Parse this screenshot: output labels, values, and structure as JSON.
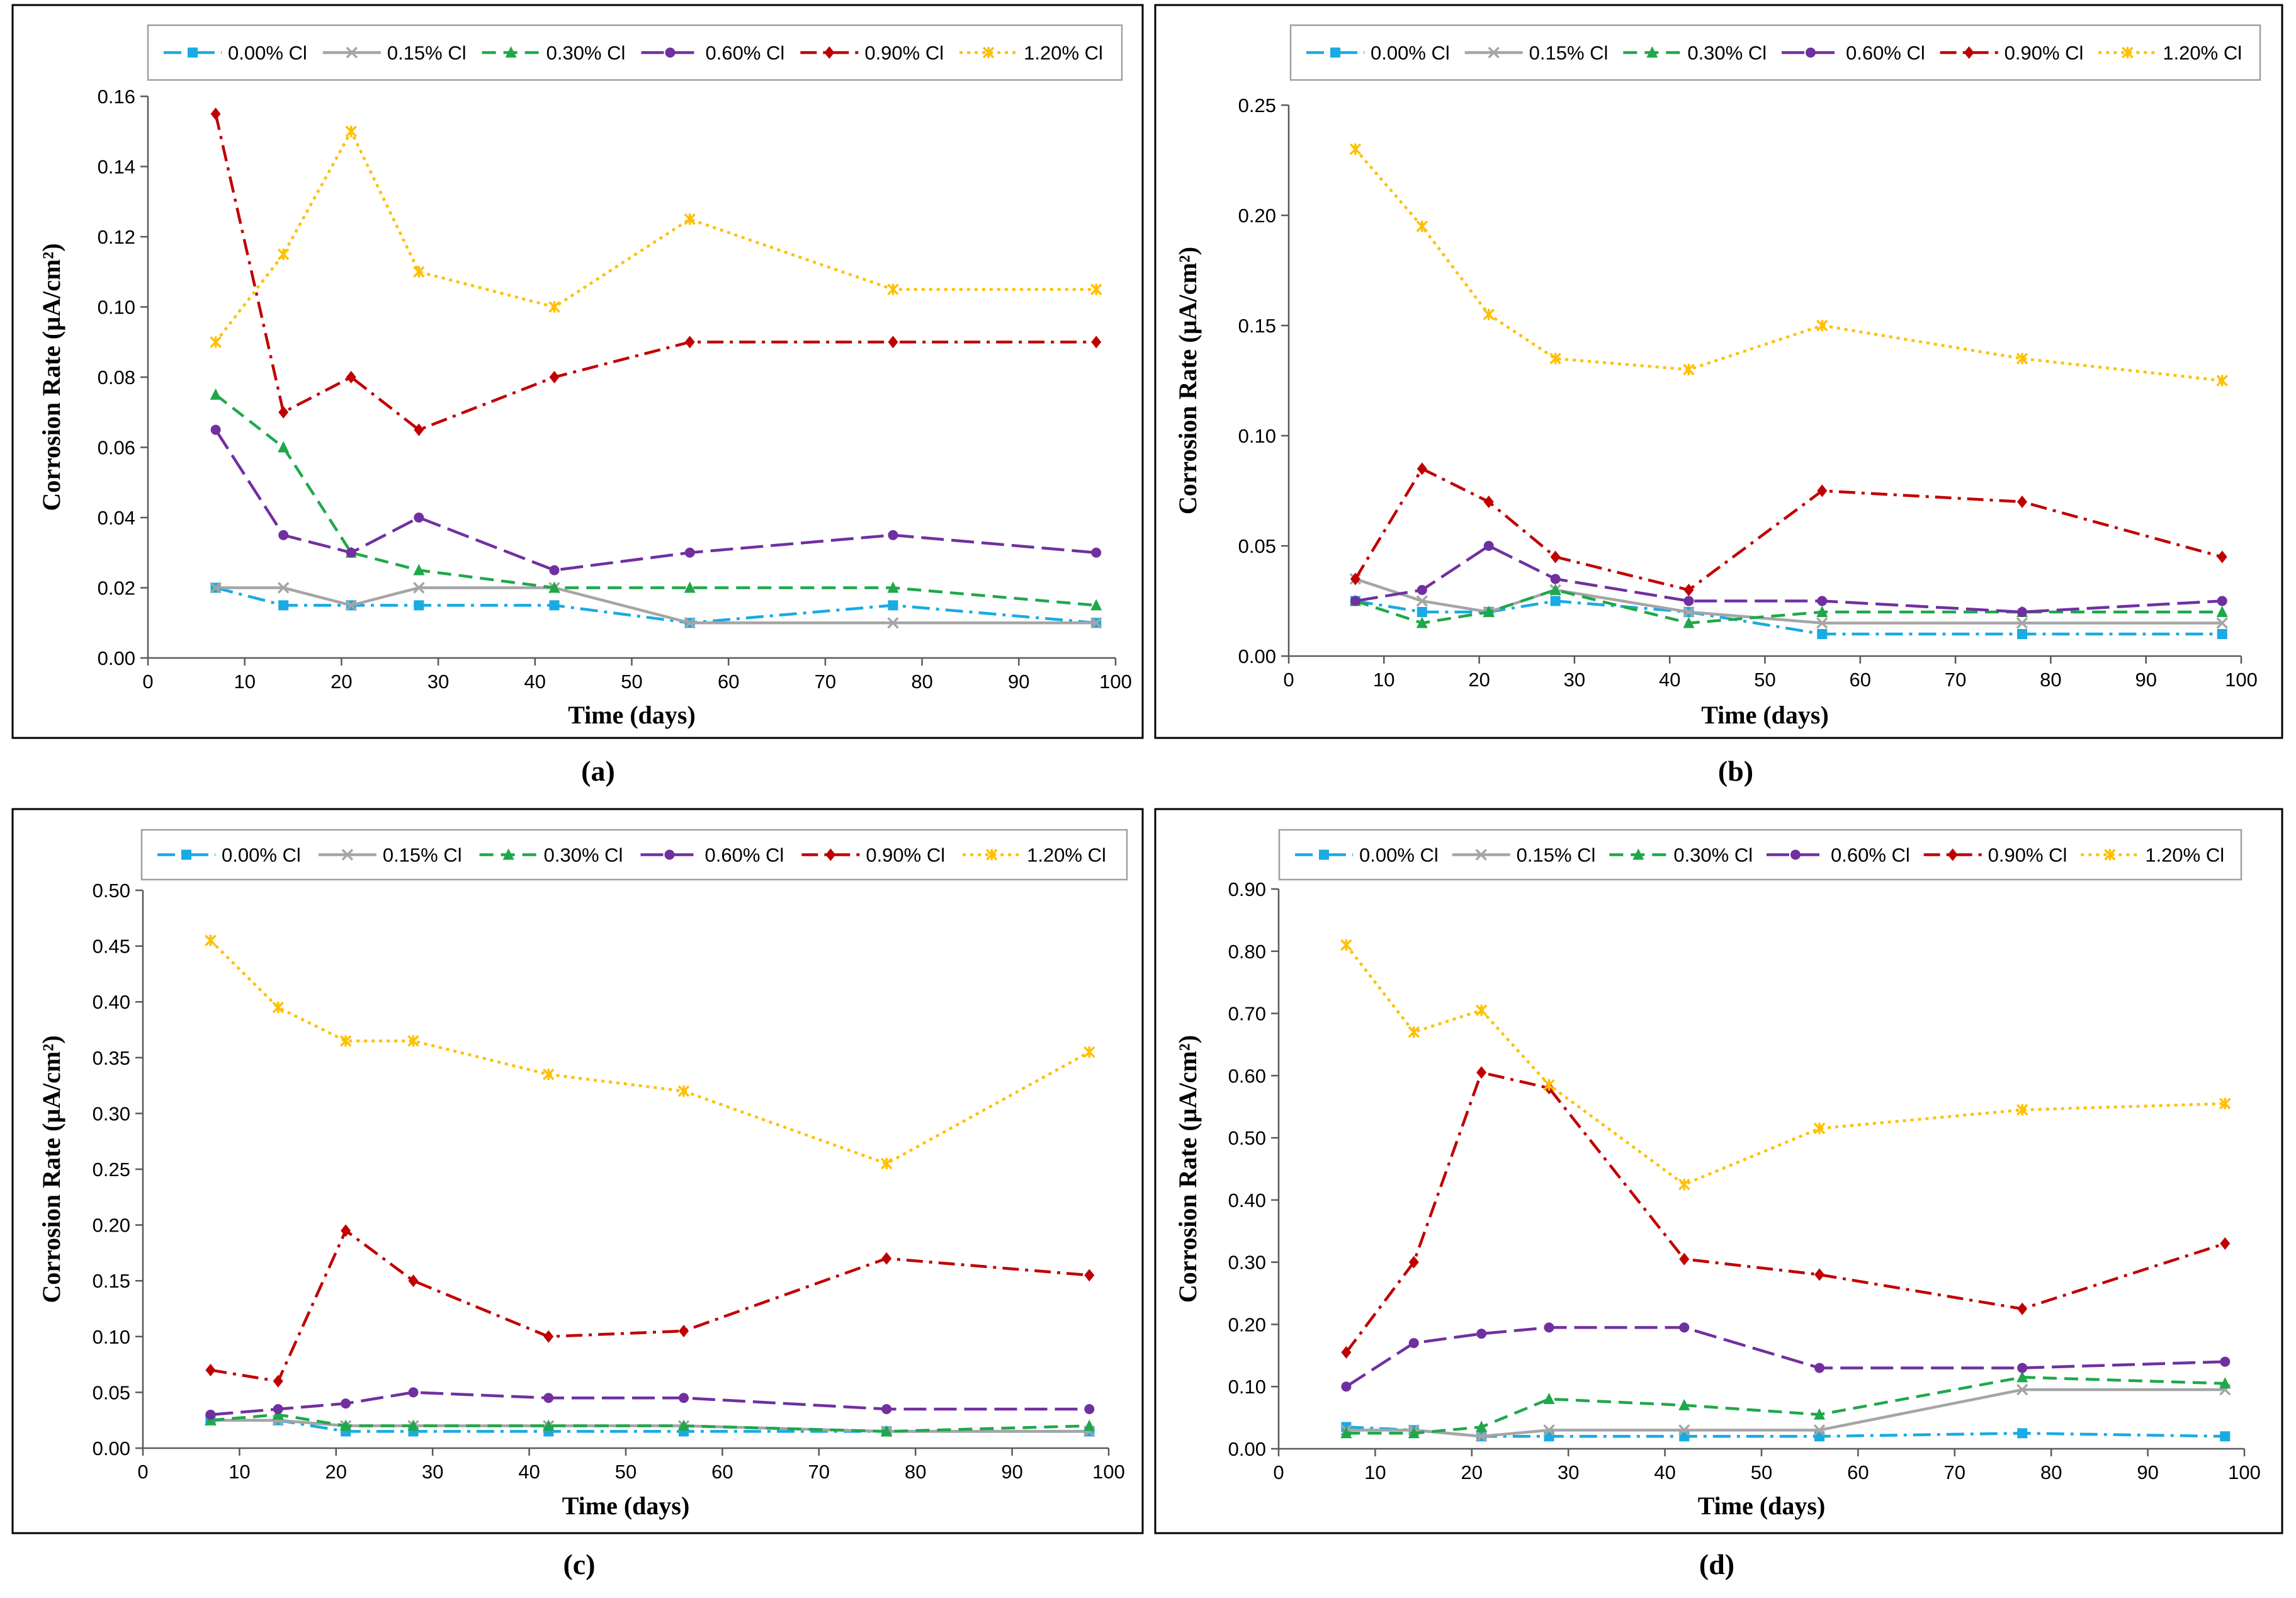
{
  "chart_data": [
    {
      "type": "line",
      "caption": "(a)",
      "xlabel": "Time (days)",
      "ylabel": "Corrosion Rate (µA/cm²)",
      "xlim": [
        0,
        100
      ],
      "xticks": [
        "0",
        "10",
        "20",
        "30",
        "40",
        "50",
        "60",
        "70",
        "80",
        "90",
        "100"
      ],
      "ylim": [
        0,
        0.16
      ],
      "yticks": [
        "0.00",
        "0.02",
        "0.04",
        "0.06",
        "0.08",
        "0.10",
        "0.12",
        "0.14",
        "0.16"
      ],
      "legend_position": "top",
      "x": [
        7,
        14,
        21,
        28,
        42,
        56,
        77,
        98
      ],
      "series": [
        {
          "name": "0.00% Cl",
          "color": "#19ABE3",
          "marker": "square",
          "values": [
            0.02,
            0.015,
            0.015,
            0.015,
            0.015,
            0.01,
            0.015,
            0.01
          ]
        },
        {
          "name": "0.15% Cl",
          "color": "#A5A5A5",
          "marker": "x",
          "values": [
            0.02,
            0.02,
            0.015,
            0.02,
            0.02,
            0.01,
            0.01,
            0.01
          ]
        },
        {
          "name": "0.30% Cl",
          "color": "#1FA84A",
          "marker": "triangle",
          "values": [
            0.075,
            0.06,
            0.03,
            0.025,
            0.02,
            0.02,
            0.02,
            0.015
          ]
        },
        {
          "name": "0.60% Cl",
          "color": "#7030A0",
          "marker": "circle",
          "values": [
            0.065,
            0.035,
            0.03,
            0.04,
            0.025,
            0.03,
            0.035,
            0.03
          ]
        },
        {
          "name": "0.90% Cl",
          "color": "#C00000",
          "marker": "diamond",
          "values": [
            0.155,
            0.07,
            0.08,
            0.065,
            0.08,
            0.09,
            0.09,
            0.09
          ]
        },
        {
          "name": "1.20% Cl",
          "color": "#FFC000",
          "marker": "asterisk",
          "values": [
            0.09,
            0.115,
            0.15,
            0.11,
            0.1,
            0.125,
            0.105,
            0.105
          ]
        }
      ]
    },
    {
      "type": "line",
      "caption": "(b)",
      "xlabel": "Time (days)",
      "ylabel": "Corrosion Rate (µA/cm²)",
      "xlim": [
        0,
        100
      ],
      "xticks": [
        "0",
        "10",
        "20",
        "30",
        "40",
        "50",
        "60",
        "70",
        "80",
        "90",
        "100"
      ],
      "ylim": [
        0,
        0.25
      ],
      "yticks": [
        "0.00",
        "0.05",
        "0.10",
        "0.15",
        "0.20",
        "0.25"
      ],
      "legend_position": "top",
      "x": [
        7,
        14,
        21,
        28,
        42,
        56,
        77,
        98
      ],
      "series": [
        {
          "name": "0.00% Cl",
          "color": "#19ABE3",
          "marker": "square",
          "values": [
            0.025,
            0.02,
            0.02,
            0.025,
            0.02,
            0.01,
            0.01,
            0.01
          ]
        },
        {
          "name": "0.15% Cl",
          "color": "#A5A5A5",
          "marker": "x",
          "values": [
            0.035,
            0.025,
            0.02,
            0.03,
            0.02,
            0.015,
            0.015,
            0.015
          ]
        },
        {
          "name": "0.30% Cl",
          "color": "#1FA84A",
          "marker": "triangle",
          "values": [
            0.025,
            0.015,
            0.02,
            0.03,
            0.015,
            0.02,
            0.02,
            0.02
          ]
        },
        {
          "name": "0.60% Cl",
          "color": "#7030A0",
          "marker": "circle",
          "values": [
            0.025,
            0.03,
            0.05,
            0.035,
            0.025,
            0.025,
            0.02,
            0.025
          ]
        },
        {
          "name": "0.90% Cl",
          "color": "#C00000",
          "marker": "diamond",
          "values": [
            0.035,
            0.085,
            0.07,
            0.045,
            0.03,
            0.075,
            0.07,
            0.045
          ]
        },
        {
          "name": "1.20% Cl",
          "color": "#FFC000",
          "marker": "asterisk",
          "values": [
            0.23,
            0.195,
            0.155,
            0.135,
            0.13,
            0.15,
            0.135,
            0.125
          ]
        }
      ]
    },
    {
      "type": "line",
      "caption": "(c)",
      "xlabel": "Time (days)",
      "ylabel": "Corrosion Rate (µA/cm²)",
      "xlim": [
        0,
        100
      ],
      "xticks": [
        "0",
        "10",
        "20",
        "30",
        "40",
        "50",
        "60",
        "70",
        "80",
        "90",
        "100"
      ],
      "ylim": [
        0,
        0.5
      ],
      "yticks": [
        "0.00",
        "0.05",
        "0.10",
        "0.15",
        "0.20",
        "0.25",
        "0.30",
        "0.35",
        "0.40",
        "0.45",
        "0.50"
      ],
      "legend_position": "top",
      "x": [
        7,
        14,
        21,
        28,
        42,
        56,
        77,
        98
      ],
      "series": [
        {
          "name": "0.00% Cl",
          "color": "#19ABE3",
          "marker": "square",
          "values": [
            0.025,
            0.025,
            0.015,
            0.015,
            0.015,
            0.015,
            0.015,
            0.015
          ]
        },
        {
          "name": "0.15% Cl",
          "color": "#A5A5A5",
          "marker": "x",
          "values": [
            0.025,
            0.025,
            0.02,
            0.02,
            0.02,
            0.02,
            0.015,
            0.015
          ]
        },
        {
          "name": "0.30% Cl",
          "color": "#1FA84A",
          "marker": "triangle",
          "values": [
            0.025,
            0.03,
            0.02,
            0.02,
            0.02,
            0.02,
            0.015,
            0.02
          ]
        },
        {
          "name": "0.60% Cl",
          "color": "#7030A0",
          "marker": "circle",
          "values": [
            0.03,
            0.035,
            0.04,
            0.05,
            0.045,
            0.045,
            0.035,
            0.035
          ]
        },
        {
          "name": "0.90% Cl",
          "color": "#C00000",
          "marker": "diamond",
          "values": [
            0.07,
            0.06,
            0.195,
            0.15,
            0.1,
            0.105,
            0.17,
            0.155
          ]
        },
        {
          "name": "1.20% Cl",
          "color": "#FFC000",
          "marker": "asterisk",
          "values": [
            0.455,
            0.395,
            0.365,
            0.365,
            0.335,
            0.32,
            0.255,
            0.355
          ]
        }
      ]
    },
    {
      "type": "line",
      "caption": "(d)",
      "xlabel": "Time (days)",
      "ylabel": "Corrosion Rate (µA/cm²)",
      "xlim": [
        0,
        100
      ],
      "xticks": [
        "0",
        "10",
        "20",
        "30",
        "40",
        "50",
        "60",
        "70",
        "80",
        "90",
        "100"
      ],
      "ylim": [
        0,
        0.9
      ],
      "yticks": [
        "0.00",
        "0.10",
        "0.20",
        "0.30",
        "0.40",
        "0.50",
        "0.60",
        "0.70",
        "0.80",
        "0.90"
      ],
      "legend_position": "top",
      "x": [
        7,
        14,
        21,
        28,
        42,
        56,
        77,
        98
      ],
      "series": [
        {
          "name": "0.00% Cl",
          "color": "#19ABE3",
          "marker": "square",
          "values": [
            0.035,
            0.03,
            0.02,
            0.02,
            0.02,
            0.02,
            0.025,
            0.02
          ]
        },
        {
          "name": "0.15% Cl",
          "color": "#A5A5A5",
          "marker": "x",
          "values": [
            0.03,
            0.03,
            0.02,
            0.03,
            0.03,
            0.03,
            0.095,
            0.095
          ]
        },
        {
          "name": "0.30% Cl",
          "color": "#1FA84A",
          "marker": "triangle",
          "values": [
            0.025,
            0.025,
            0.035,
            0.08,
            0.07,
            0.055,
            0.115,
            0.105
          ]
        },
        {
          "name": "0.60% Cl",
          "color": "#7030A0",
          "marker": "circle",
          "values": [
            0.1,
            0.17,
            0.185,
            0.195,
            0.195,
            0.13,
            0.13,
            0.14
          ]
        },
        {
          "name": "0.90% Cl",
          "color": "#C00000",
          "marker": "diamond",
          "values": [
            0.155,
            0.3,
            0.605,
            0.58,
            0.305,
            0.28,
            0.225,
            0.33
          ]
        },
        {
          "name": "1.20% Cl",
          "color": "#FFC000",
          "marker": "asterisk",
          "values": [
            0.81,
            0.67,
            0.705,
            0.585,
            0.425,
            0.515,
            0.545,
            0.555
          ]
        }
      ]
    }
  ]
}
